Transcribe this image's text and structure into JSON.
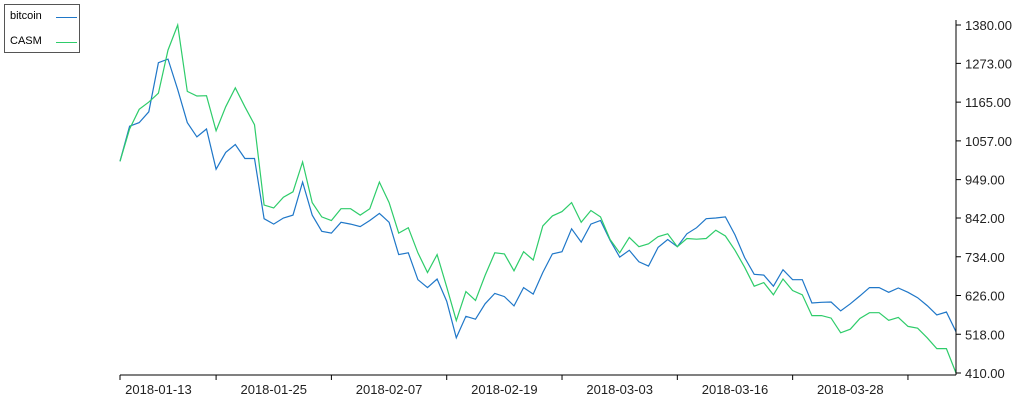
{
  "chart_data": {
    "type": "line",
    "title": "",
    "xlabel": "",
    "ylabel": "",
    "ylim": [
      410,
      1380
    ],
    "y_ticks": [
      "1380.00",
      "1273.00",
      "1165.00",
      "1057.00",
      "949.00",
      "842.00",
      "734.00",
      "626.00",
      "518.00",
      "410.00"
    ],
    "x_ticks": [
      "2018-01-13",
      "2018-01-25",
      "2018-02-07",
      "2018-02-19",
      "2018-03-03",
      "2018-03-16",
      "2018-03-28"
    ],
    "x_tick_index": [
      10,
      22,
      34,
      46,
      58,
      70,
      82
    ],
    "y_axis_position": "right",
    "grid": false,
    "legend_position": "top-left",
    "series": [
      {
        "name": "bitcoin",
        "color": "#1f77c8",
        "values": [
          1000,
          1098,
          1108,
          1138,
          1275,
          1285,
          1200,
          1108,
          1068,
          1090,
          978,
          1025,
          1047,
          1008,
          1008,
          840,
          825,
          842,
          850,
          942,
          850,
          805,
          800,
          830,
          825,
          818,
          835,
          855,
          830,
          740,
          745,
          670,
          648,
          672,
          610,
          508,
          568,
          560,
          603,
          632,
          623,
          597,
          648,
          630,
          690,
          742,
          748,
          812,
          775,
          825,
          835,
          780,
          733,
          752,
          720,
          708,
          760,
          782,
          762,
          798,
          815,
          840,
          842,
          845,
          795,
          732,
          685,
          683,
          652,
          698,
          670,
          670,
          605,
          607,
          608,
          583,
          603,
          625,
          648,
          648,
          635,
          647,
          635,
          620,
          598,
          572,
          580,
          525
        ]
      },
      {
        "name": "CASM",
        "color": "#2ecc6a",
        "values": [
          1000,
          1090,
          1145,
          1165,
          1190,
          1310,
          1380,
          1195,
          1182,
          1183,
          1085,
          1152,
          1205,
          1152,
          1102,
          878,
          870,
          900,
          915,
          998,
          885,
          845,
          835,
          868,
          868,
          850,
          868,
          942,
          885,
          800,
          815,
          745,
          690,
          740,
          650,
          556,
          637,
          612,
          682,
          745,
          742,
          695,
          748,
          725,
          820,
          848,
          860,
          885,
          830,
          863,
          845,
          782,
          745,
          788,
          762,
          770,
          790,
          798,
          762,
          785,
          783,
          785,
          808,
          792,
          752,
          705,
          652,
          662,
          628,
          672,
          640,
          628,
          570,
          570,
          563,
          522,
          532,
          562,
          578,
          578,
          557,
          565,
          540,
          535,
          508,
          478,
          478,
          410
        ]
      }
    ]
  }
}
